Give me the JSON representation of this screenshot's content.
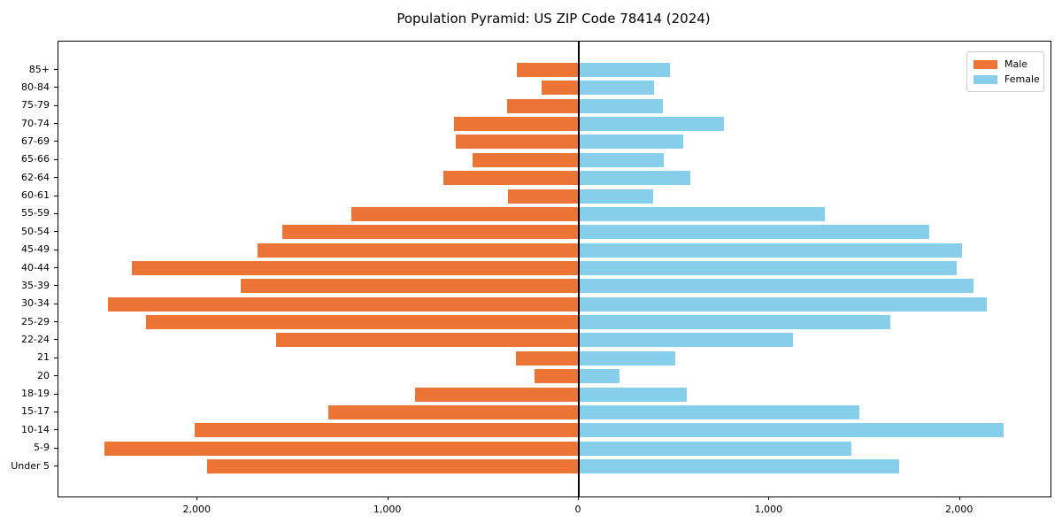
{
  "title": "Population Pyramid: US ZIP Code 78414 (2024)",
  "legend": {
    "male_label": "Male",
    "female_label": "Female"
  },
  "colors": {
    "male": "#ec7436",
    "female": "#87ceeb",
    "axis": "#000000",
    "legend_border": "#cccccc",
    "background": "#ffffff"
  },
  "chart_data": {
    "type": "bar",
    "subtype": "population-pyramid",
    "title": "Population Pyramid: US ZIP Code 78414 (2024)",
    "xlabel": "",
    "ylabel": "",
    "categories_top_to_bottom": [
      "85+",
      "80-84",
      "75-79",
      "70-74",
      "67-69",
      "65-66",
      "62-64",
      "60-61",
      "55-59",
      "50-54",
      "45-49",
      "40-44",
      "35-39",
      "30-34",
      "25-29",
      "22-24",
      "21",
      "20",
      "18-19",
      "15-17",
      "10-14",
      "5-9",
      "Under 5"
    ],
    "series": [
      {
        "name": "Male",
        "side": "left",
        "color": "#ec7436",
        "values": [
          325,
          195,
          375,
          655,
          645,
          555,
          710,
          370,
          1195,
          1555,
          1685,
          2345,
          1775,
          2470,
          2270,
          1590,
          330,
          230,
          860,
          1315,
          2015,
          2490,
          1950
        ]
      },
      {
        "name": "Female",
        "side": "right",
        "color": "#87ceeb",
        "values": [
          480,
          395,
          440,
          760,
          550,
          445,
          585,
          390,
          1290,
          1840,
          2010,
          1985,
          2070,
          2140,
          1635,
          1125,
          505,
          215,
          565,
          1470,
          2230,
          1430,
          1680
        ]
      }
    ],
    "x_ticks": [
      -2000,
      -1000,
      0,
      1000,
      2000
    ],
    "x_tick_labels": [
      "2,000",
      "1,000",
      "0",
      "1,000",
      "2,000"
    ],
    "xlim": [
      -2730,
      2475
    ],
    "grid": false,
    "legend_position": "upper-right",
    "zero_line": true
  }
}
